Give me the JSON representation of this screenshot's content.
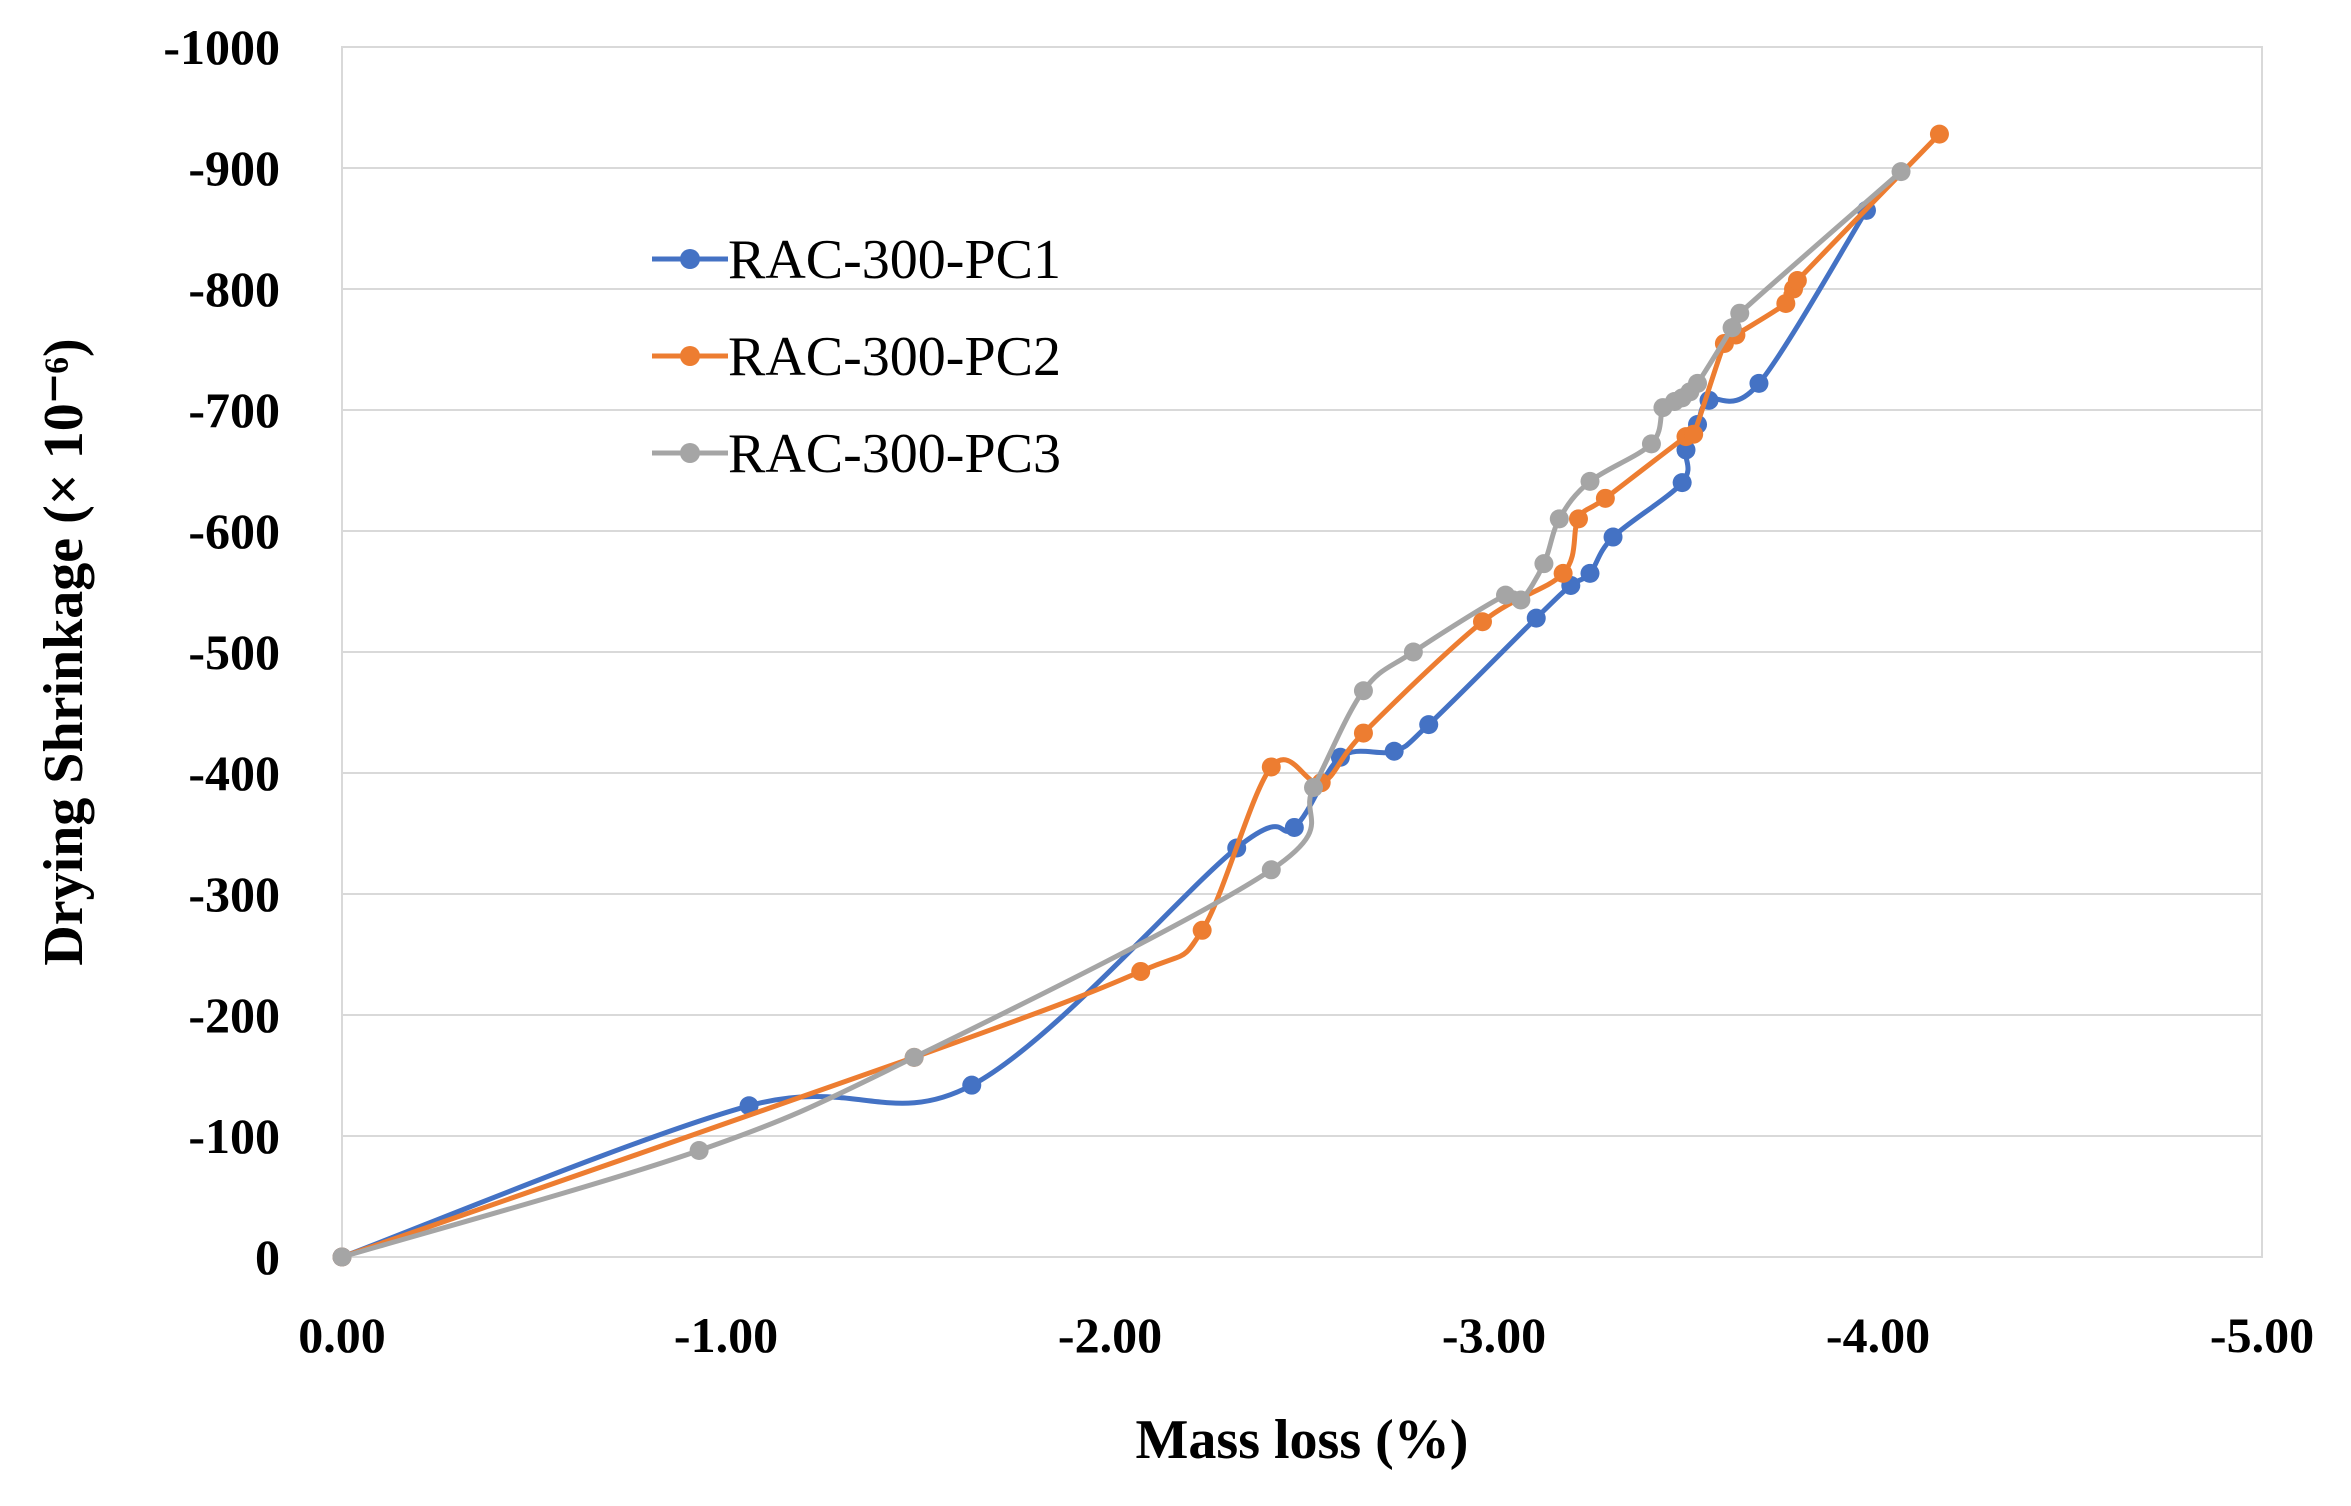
{
  "chart_data": {
    "type": "scatter",
    "title": "",
    "xlabel": "Mass loss (%)",
    "ylabel": "Drying Shrinkage (× 10⁻⁶)",
    "xlim": [
      0,
      -5
    ],
    "ylim": [
      0,
      -1000
    ],
    "x_ticks": [
      0,
      -1,
      -2,
      -3,
      -4,
      -5
    ],
    "x_tick_labels": [
      "0.00",
      "-1.00",
      "-2.00",
      "-3.00",
      "-4.00",
      "-5.00"
    ],
    "y_ticks": [
      0,
      -100,
      -200,
      -300,
      -400,
      -500,
      -600,
      -700,
      -800,
      -900,
      -1000
    ],
    "y_tick_labels": [
      "0",
      "-100",
      "-200",
      "-300",
      "-400",
      "-500",
      "-600",
      "-700",
      "-800",
      "-900",
      "-1000"
    ],
    "grid": true,
    "legend_position": "upper-left",
    "series": [
      {
        "name": "RAC-300-PC1",
        "color": "#4472C4",
        "x": [
          0,
          -1.06,
          -1.64,
          -2.33,
          -2.48,
          -2.6,
          -2.74,
          -2.83,
          -3.11,
          -3.2,
          -3.25,
          -3.31,
          -3.49,
          -3.5,
          -3.53,
          -3.56,
          -3.69,
          -3.97
        ],
        "y": [
          0,
          -125,
          -142,
          -338,
          -355,
          -413,
          -418,
          -440,
          -528,
          -555,
          -565,
          -595,
          -640,
          -667,
          -688,
          -708,
          -722,
          -865
        ]
      },
      {
        "name": "RAC-300-PC2",
        "color": "#ED7D31",
        "x": [
          0,
          -1.49,
          -2.08,
          -2.24,
          -2.42,
          -2.55,
          -2.66,
          -2.97,
          -3.18,
          -3.22,
          -3.29,
          -3.5,
          -3.52,
          -3.6,
          -3.63,
          -3.76,
          -3.78,
          -3.79,
          -4.16
        ],
        "y": [
          0,
          -165,
          -236,
          -270,
          -405,
          -392,
          -433,
          -525,
          -565,
          -610,
          -627,
          -678,
          -680,
          -755,
          -762,
          -788,
          -800,
          -807,
          -928
        ]
      },
      {
        "name": "RAC-300-PC3",
        "color": "#A5A5A5",
        "x": [
          0,
          -0.93,
          -1.49,
          -2.42,
          -2.53,
          -2.66,
          -2.79,
          -3.03,
          -3.07,
          -3.13,
          -3.17,
          -3.25,
          -3.41,
          -3.44,
          -3.47,
          -3.49,
          -3.51,
          -3.53,
          -3.62,
          -3.64,
          -4.06
        ],
        "y": [
          0,
          -88,
          -165,
          -320,
          -388,
          -468,
          -500,
          -547,
          -543,
          -573,
          -610,
          -641,
          -672,
          -702,
          -707,
          -710,
          -715,
          -722,
          -768,
          -780,
          -897
        ]
      }
    ]
  }
}
